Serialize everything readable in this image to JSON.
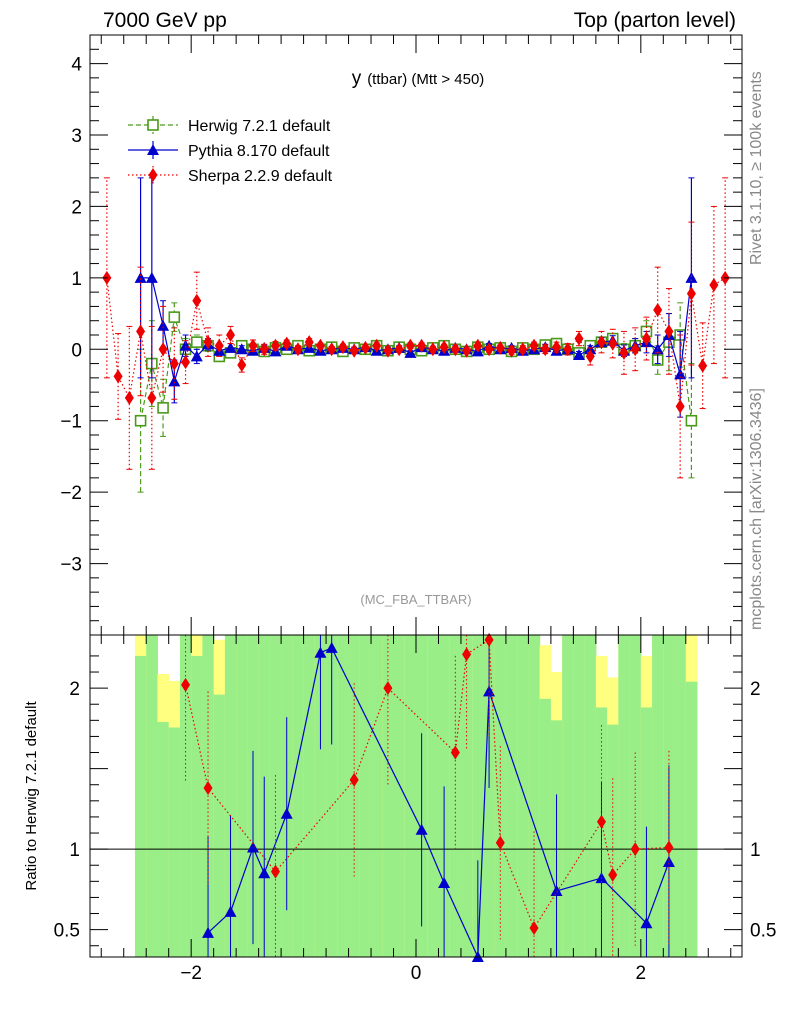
{
  "header": {
    "left": "7000 GeV pp",
    "right": "Top (parton level)"
  },
  "side_labels": {
    "top": "Rivet 3.1.10, ≥ 100k events",
    "bottom": "mcplots.cern.ch [arXiv:1306.3436]"
  },
  "chart_data": [
    {
      "type": "line",
      "title_main": "y",
      "title_rest": "(ttbar) (Mtt > 450)",
      "watermark": "(MC_FBA_TTBAR)",
      "xlim": [
        -2.9,
        2.9
      ],
      "ylim": [
        -4.0,
        4.4
      ],
      "x_ticks": [
        "−2",
        "0",
        "2"
      ],
      "y_ticks": [
        "−3",
        "−2",
        "−1",
        "0",
        "1",
        "2",
        "3",
        "4"
      ],
      "legend_position": "top-left",
      "series": [
        {
          "name": "Herwig 7.2.1 default",
          "color": "#4a9a1a",
          "marker": "open-square",
          "style": "dashed",
          "x": [
            -2.45,
            -2.35,
            -2.25,
            -2.15,
            -2.05,
            -1.95,
            -1.85,
            -1.75,
            -1.65,
            -1.55,
            -1.45,
            -1.35,
            -1.25,
            -1.15,
            -1.05,
            -0.95,
            -0.85,
            -0.75,
            -0.65,
            -0.55,
            -0.45,
            -0.35,
            -0.25,
            -0.15,
            -0.05,
            0.05,
            0.15,
            0.25,
            0.35,
            0.45,
            0.55,
            0.65,
            0.75,
            0.85,
            0.95,
            1.05,
            1.15,
            1.25,
            1.35,
            1.45,
            1.55,
            1.65,
            1.75,
            1.85,
            1.95,
            2.05,
            2.15,
            2.25,
            2.35,
            2.45
          ],
          "y": [
            -1.0,
            -0.2,
            -0.82,
            0.45,
            0.0,
            0.1,
            0.05,
            -0.1,
            -0.05,
            0.05,
            0.0,
            -0.03,
            0.02,
            0.0,
            0.05,
            -0.02,
            0.0,
            0.03,
            -0.03,
            0.02,
            0.0,
            0.05,
            -0.02,
            0.03,
            0.0,
            -0.02,
            0.02,
            0.05,
            0.0,
            -0.03,
            0.03,
            0.0,
            0.02,
            -0.03,
            0.02,
            0.0,
            0.06,
            0.08,
            0.0,
            -0.05,
            0.05,
            0.1,
            0.15,
            0.0,
            0.05,
            0.25,
            -0.15,
            0.1,
            0.2,
            -1.0
          ],
          "yerr": [
            1.0,
            0.6,
            0.4,
            0.2,
            0.15,
            0.1,
            0.08,
            0.07,
            0.06,
            0.05,
            0.05,
            0.04,
            0.04,
            0.04,
            0.04,
            0.04,
            0.03,
            0.03,
            0.03,
            0.03,
            0.03,
            0.03,
            0.03,
            0.03,
            0.03,
            0.03,
            0.03,
            0.03,
            0.03,
            0.03,
            0.03,
            0.03,
            0.03,
            0.03,
            0.04,
            0.04,
            0.04,
            0.04,
            0.04,
            0.05,
            0.05,
            0.06,
            0.07,
            0.08,
            0.1,
            0.15,
            0.2,
            0.4,
            0.45,
            0.8
          ]
        },
        {
          "name": "Pythia 8.170 default",
          "color": "#0000cc",
          "marker": "filled-triangle",
          "style": "solid",
          "x": [
            -2.45,
            -2.35,
            -2.25,
            -2.15,
            -2.05,
            -1.95,
            -1.85,
            -1.75,
            -1.65,
            -1.55,
            -1.45,
            -1.35,
            -1.25,
            -1.15,
            -1.05,
            -0.95,
            -0.85,
            -0.75,
            -0.65,
            -0.55,
            -0.45,
            -0.35,
            -0.25,
            -0.15,
            -0.05,
            0.05,
            0.15,
            0.25,
            0.35,
            0.45,
            0.55,
            0.65,
            0.75,
            0.85,
            0.95,
            1.05,
            1.15,
            1.25,
            1.35,
            1.45,
            1.55,
            1.65,
            1.75,
            1.85,
            1.95,
            2.05,
            2.15,
            2.25,
            2.35,
            2.45
          ],
          "y": [
            1.0,
            1.0,
            0.33,
            -0.45,
            0.05,
            -0.1,
            0.07,
            -0.02,
            0.02,
            0.0,
            -0.02,
            0.02,
            -0.03,
            0.05,
            0.0,
            0.02,
            -0.02,
            0.0,
            0.02,
            0.0,
            0.03,
            -0.02,
            0.0,
            0.02,
            -0.05,
            0.03,
            0.0,
            -0.02,
            0.02,
            0.0,
            -0.03,
            0.05,
            0.0,
            0.02,
            -0.02,
            0.0,
            0.03,
            -0.02,
            0.0,
            -0.08,
            0.0,
            0.1,
            0.12,
            -0.02,
            0.05,
            0.1,
            0.0,
            0.2,
            -0.35,
            1.0
          ],
          "yerr": [
            1.4,
            1.4,
            0.35,
            0.3,
            0.15,
            0.1,
            0.08,
            0.07,
            0.06,
            0.05,
            0.05,
            0.04,
            0.04,
            0.04,
            0.04,
            0.04,
            0.03,
            0.03,
            0.03,
            0.03,
            0.03,
            0.03,
            0.03,
            0.03,
            0.03,
            0.03,
            0.03,
            0.03,
            0.03,
            0.03,
            0.03,
            0.03,
            0.03,
            0.03,
            0.04,
            0.04,
            0.04,
            0.04,
            0.04,
            0.05,
            0.05,
            0.06,
            0.07,
            0.08,
            0.1,
            0.15,
            0.2,
            0.3,
            0.6,
            1.4
          ]
        },
        {
          "name": "Sherpa 2.2.9 default",
          "color": "#ee0000",
          "marker": "filled-diamond",
          "style": "dotted",
          "x": [
            -2.75,
            -2.65,
            -2.55,
            -2.45,
            -2.35,
            -2.25,
            -2.15,
            -2.05,
            -1.95,
            -1.85,
            -1.75,
            -1.65,
            -1.55,
            -1.45,
            -1.35,
            -1.25,
            -1.15,
            -1.05,
            -0.95,
            -0.85,
            -0.75,
            -0.65,
            -0.55,
            -0.45,
            -0.35,
            -0.25,
            -0.15,
            -0.05,
            0.05,
            0.15,
            0.25,
            0.35,
            0.45,
            0.55,
            0.65,
            0.75,
            0.85,
            0.95,
            1.05,
            1.15,
            1.25,
            1.35,
            1.45,
            1.55,
            1.65,
            1.75,
            1.85,
            1.95,
            2.05,
            2.15,
            2.25,
            2.35,
            2.45,
            2.55,
            2.65,
            2.75
          ],
          "y": [
            1.0,
            -0.38,
            -0.68,
            0.25,
            -0.68,
            0.0,
            -0.2,
            -0.18,
            0.68,
            0.1,
            0.05,
            0.2,
            -0.22,
            0.05,
            0.0,
            0.05,
            0.08,
            0.0,
            0.1,
            0.05,
            0.0,
            0.03,
            -0.02,
            0.02,
            0.05,
            -0.02,
            0.0,
            0.05,
            0.05,
            0.0,
            0.03,
            0.0,
            -0.02,
            0.05,
            0.0,
            0.02,
            -0.02,
            0.0,
            0.05,
            0.0,
            0.03,
            0.0,
            0.15,
            -0.1,
            0.1,
            0.08,
            -0.05,
            0.0,
            0.15,
            0.55,
            0.25,
            -0.8,
            0.78,
            -0.23,
            0.9,
            1.0
          ],
          "yerr": [
            1.4,
            0.6,
            1.0,
            0.9,
            1.0,
            0.6,
            0.5,
            0.3,
            0.4,
            0.2,
            0.15,
            0.12,
            0.1,
            0.08,
            0.07,
            0.06,
            0.05,
            0.05,
            0.05,
            0.04,
            0.04,
            0.04,
            0.04,
            0.04,
            0.04,
            0.04,
            0.04,
            0.04,
            0.04,
            0.04,
            0.04,
            0.04,
            0.04,
            0.04,
            0.04,
            0.04,
            0.05,
            0.05,
            0.05,
            0.06,
            0.07,
            0.08,
            0.1,
            0.12,
            0.15,
            0.2,
            0.3,
            0.3,
            0.3,
            0.6,
            0.6,
            1.0,
            1.0,
            0.6,
            1.1,
            1.4
          ]
        }
      ]
    },
    {
      "type": "line",
      "ylabel": "Ratio to Herwig 7.2.1 default",
      "xlim": [
        -2.9,
        2.9
      ],
      "ylim": [
        0.33,
        2.33
      ],
      "y_ticks": [
        "0.5",
        "1",
        "2"
      ],
      "reference_line": 1.0,
      "band_colors": {
        "outer": "#ffff80",
        "inner": "#99ee88"
      },
      "series": [
        {
          "name": "Pythia 8.170 default",
          "x": [
            -1.85,
            -1.65,
            -1.45,
            -1.35,
            -1.15,
            -0.85,
            -0.75,
            0.05,
            0.25,
            0.55,
            0.65,
            1.25,
            1.65,
            2.05,
            2.25
          ],
          "y": [
            0.48,
            0.61,
            1.01,
            0.85,
            1.22,
            2.22,
            2.25,
            1.12,
            0.79,
            0.33,
            1.98,
            0.74,
            0.82,
            0.54,
            0.92
          ]
        },
        {
          "name": "Sherpa 2.2.9 default",
          "x": [
            -2.05,
            -1.85,
            -1.25,
            -0.55,
            -0.25,
            0.35,
            0.45,
            0.65,
            0.75,
            1.05,
            1.65,
            1.75,
            1.95,
            2.25
          ],
          "y": [
            2.02,
            1.38,
            0.86,
            1.43,
            2.0,
            1.6,
            2.21,
            2.3,
            1.04,
            0.51,
            1.17,
            0.84,
            1.0,
            1.01
          ]
        }
      ]
    }
  ]
}
